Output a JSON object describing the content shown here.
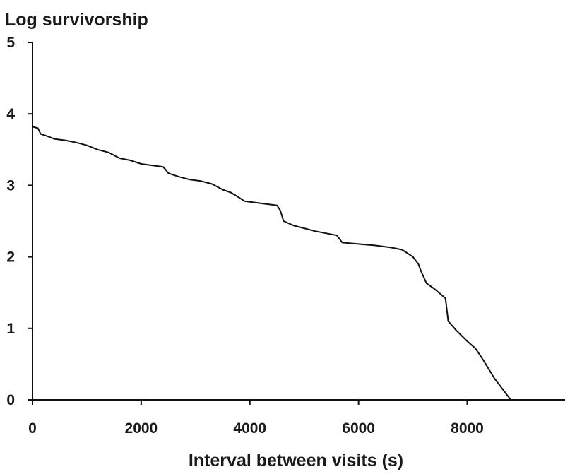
{
  "chart_data": {
    "type": "line",
    "title": "Log survivorship",
    "xlabel": "Interval between visits (s)",
    "ylabel": "",
    "xlim": [
      0,
      9800
    ],
    "ylim": [
      0,
      5
    ],
    "x_ticks": [
      0,
      2000,
      4000,
      6000,
      8000
    ],
    "x_tick_labels": [
      "0",
      "2000",
      "4000",
      "6000",
      "8000"
    ],
    "y_ticks": [
      0,
      1,
      2,
      3,
      4,
      5
    ],
    "y_tick_labels": [
      "0",
      "1",
      "2",
      "3",
      "4",
      "5"
    ],
    "grid": false,
    "legend": "none",
    "series": [
      {
        "color": "#111111",
        "x": [
          0,
          100,
          150,
          300,
          400,
          600,
          800,
          1000,
          1200,
          1400,
          1600,
          1800,
          2000,
          2200,
          2400,
          2450,
          2500,
          2700,
          2900,
          3100,
          3300,
          3400,
          3500,
          3650,
          3800,
          3900,
          4100,
          4300,
          4500,
          4560,
          4620,
          4800,
          5000,
          5200,
          5400,
          5600,
          5660,
          5700,
          6000,
          6300,
          6600,
          6800,
          6900,
          7000,
          7100,
          7150,
          7250,
          7400,
          7600,
          7650,
          7800,
          8000,
          8150,
          8300,
          8500,
          8800
        ],
        "y": [
          3.82,
          3.8,
          3.72,
          3.68,
          3.65,
          3.63,
          3.6,
          3.56,
          3.5,
          3.46,
          3.38,
          3.35,
          3.3,
          3.28,
          3.26,
          3.22,
          3.17,
          3.12,
          3.08,
          3.06,
          3.02,
          2.98,
          2.94,
          2.9,
          2.83,
          2.78,
          2.76,
          2.74,
          2.72,
          2.65,
          2.5,
          2.44,
          2.4,
          2.36,
          2.33,
          2.3,
          2.24,
          2.2,
          2.18,
          2.16,
          2.13,
          2.1,
          2.05,
          2.0,
          1.9,
          1.8,
          1.63,
          1.55,
          1.42,
          1.1,
          0.97,
          0.82,
          0.72,
          0.55,
          0.3,
          0.0
        ]
      }
    ]
  }
}
